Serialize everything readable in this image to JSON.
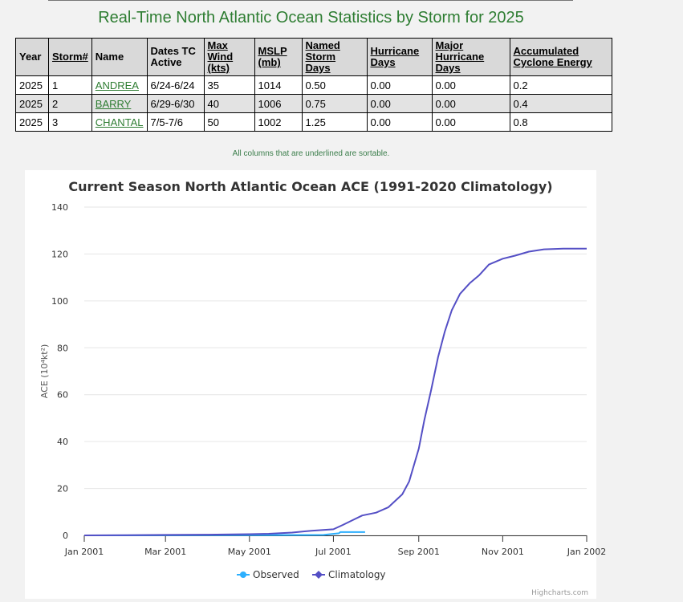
{
  "page": {
    "title": "Real-Time North Atlantic Ocean Statistics by Storm for 2025",
    "note": "All columns that are underlined are sortable."
  },
  "table": {
    "headers": [
      {
        "label": "Year",
        "sortable": false
      },
      {
        "label": "Storm#",
        "sortable": true
      },
      {
        "label": "Name",
        "sortable": false
      },
      {
        "label": "Dates TC Active",
        "sortable": false
      },
      {
        "label": "Max Wind (kts)",
        "sortable": true
      },
      {
        "label": "MSLP (mb)",
        "sortable": true
      },
      {
        "label": "Named Storm Days",
        "sortable": true
      },
      {
        "label": "Hurricane Days",
        "sortable": true
      },
      {
        "label": "Major Hurricane Days",
        "sortable": true
      },
      {
        "label": "Accumulated Cyclone Energy",
        "sortable": true
      }
    ],
    "rows": [
      {
        "year": "2025",
        "storm": "1",
        "name": "ANDREA",
        "dates": "6/24-6/24",
        "wind": "35",
        "mslp": "1014",
        "nsd": "0.50",
        "hd": "0.00",
        "mhd": "0.00",
        "ace": "0.2"
      },
      {
        "year": "2025",
        "storm": "2",
        "name": "BARRY",
        "dates": "6/29-6/30",
        "wind": "40",
        "mslp": "1006",
        "nsd": "0.75",
        "hd": "0.00",
        "mhd": "0.00",
        "ace": "0.4"
      },
      {
        "year": "2025",
        "storm": "3",
        "name": "CHANTAL",
        "dates": "7/5-7/6",
        "wind": "50",
        "mslp": "1002",
        "nsd": "1.25",
        "hd": "0.00",
        "mhd": "0.00",
        "ace": "0.8"
      }
    ]
  },
  "chart_data": {
    "type": "line",
    "title": "Current Season North Atlantic Ocean ACE (1991-2020 Climatology)",
    "ylabel": "ACE (10⁴kt²)",
    "xlabel": "",
    "ylim": [
      0,
      140
    ],
    "yticks": [
      0,
      20,
      40,
      60,
      80,
      100,
      120,
      140
    ],
    "xlim": [
      "2001-01-01",
      "2002-01-01"
    ],
    "xticks": [
      {
        "date": "2001-01-01",
        "label": "Jan 2001"
      },
      {
        "date": "2001-03-01",
        "label": "Mar 2001"
      },
      {
        "date": "2001-05-01",
        "label": "May 2001"
      },
      {
        "date": "2001-07-01",
        "label": "Jul 2001"
      },
      {
        "date": "2001-09-01",
        "label": "Sep 2001"
      },
      {
        "date": "2001-11-01",
        "label": "Nov 2001"
      },
      {
        "date": "2002-01-01",
        "label": "Jan 2002"
      }
    ],
    "grid": true,
    "legend_position": "bottom-center",
    "credits": "Highcharts.com",
    "series": [
      {
        "name": "Observed",
        "color": "#2caffe",
        "points": [
          [
            "2001-01-01",
            0
          ],
          [
            "2001-06-24",
            0.2
          ],
          [
            "2001-06-30",
            0.6
          ],
          [
            "2001-07-05",
            0.9
          ],
          [
            "2001-07-06",
            1.4
          ],
          [
            "2001-07-24",
            1.4
          ]
        ]
      },
      {
        "name": "Climatology",
        "color": "#544fc5",
        "points": [
          [
            "2001-01-01",
            0
          ],
          [
            "2001-02-01",
            0.1
          ],
          [
            "2001-03-01",
            0.2
          ],
          [
            "2001-04-01",
            0.3
          ],
          [
            "2001-05-01",
            0.5
          ],
          [
            "2001-05-15",
            0.7
          ],
          [
            "2001-06-01",
            1.2
          ],
          [
            "2001-06-15",
            2.0
          ],
          [
            "2001-07-01",
            2.6
          ],
          [
            "2001-07-08",
            4.5
          ],
          [
            "2001-07-15",
            6.5
          ],
          [
            "2001-07-22",
            8.5
          ],
          [
            "2001-08-01",
            9.7
          ],
          [
            "2001-08-10",
            12.0
          ],
          [
            "2001-08-20",
            17.5
          ],
          [
            "2001-08-25",
            23.0
          ],
          [
            "2001-09-01",
            37.0
          ],
          [
            "2001-09-05",
            49.0
          ],
          [
            "2001-09-10",
            62.0
          ],
          [
            "2001-09-15",
            76.0
          ],
          [
            "2001-09-20",
            87.0
          ],
          [
            "2001-09-25",
            96.0
          ],
          [
            "2001-10-01",
            103.0
          ],
          [
            "2001-10-08",
            107.5
          ],
          [
            "2001-10-15",
            111.0
          ],
          [
            "2001-10-22",
            115.5
          ],
          [
            "2001-11-01",
            118.0
          ],
          [
            "2001-11-10",
            119.3
          ],
          [
            "2001-11-20",
            121.0
          ],
          [
            "2001-12-01",
            122.0
          ],
          [
            "2001-12-15",
            122.3
          ],
          [
            "2002-01-01",
            122.3
          ]
        ]
      }
    ]
  }
}
